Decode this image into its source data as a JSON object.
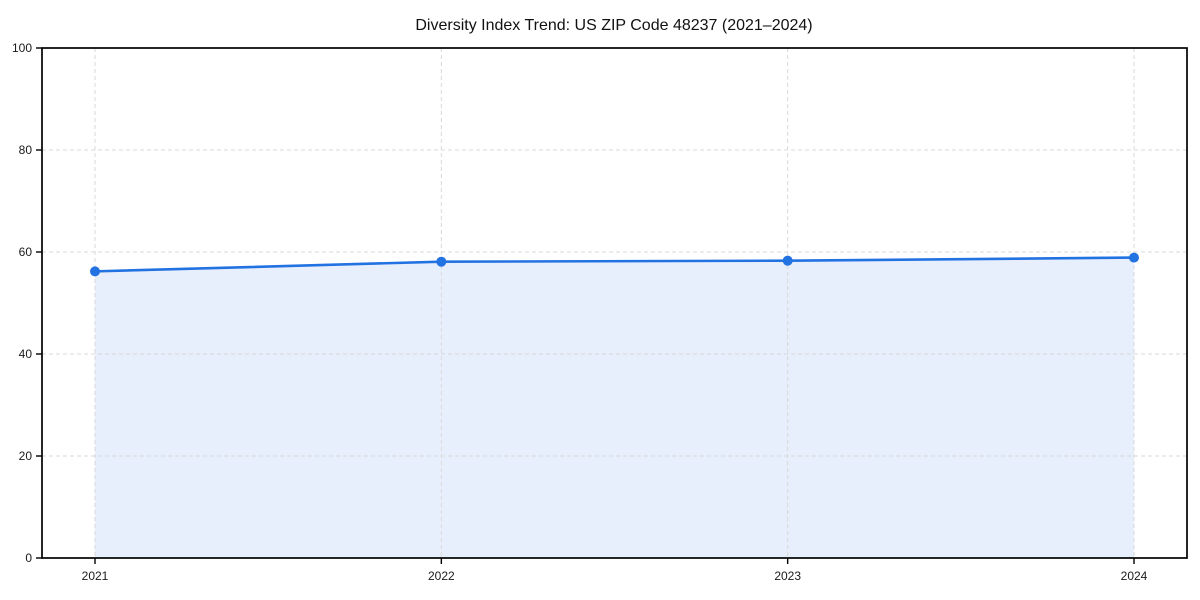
{
  "chart_data": {
    "type": "line",
    "title": "Diversity Index Trend: US ZIP Code 48237 (2021–2024)",
    "categories": [
      "2021",
      "2022",
      "2023",
      "2024"
    ],
    "series": [
      {
        "name": "Diversity Index",
        "values": [
          56.2,
          58.1,
          58.3,
          58.9
        ]
      }
    ],
    "xlabel": "",
    "ylabel": "",
    "ylim": [
      0,
      100
    ],
    "yticks": [
      0,
      20,
      40,
      60,
      80,
      100
    ],
    "grid": true,
    "grid_style": "dashed",
    "legend": false,
    "area_fill": true,
    "marker": "circle",
    "colors": {
      "line": "#2372e2",
      "marker": "#2372e2",
      "area_fill": "#e8effc",
      "gridline": "#d9d9d9",
      "axis": "#000000",
      "background": "#ffffff",
      "text": "#111111"
    }
  }
}
